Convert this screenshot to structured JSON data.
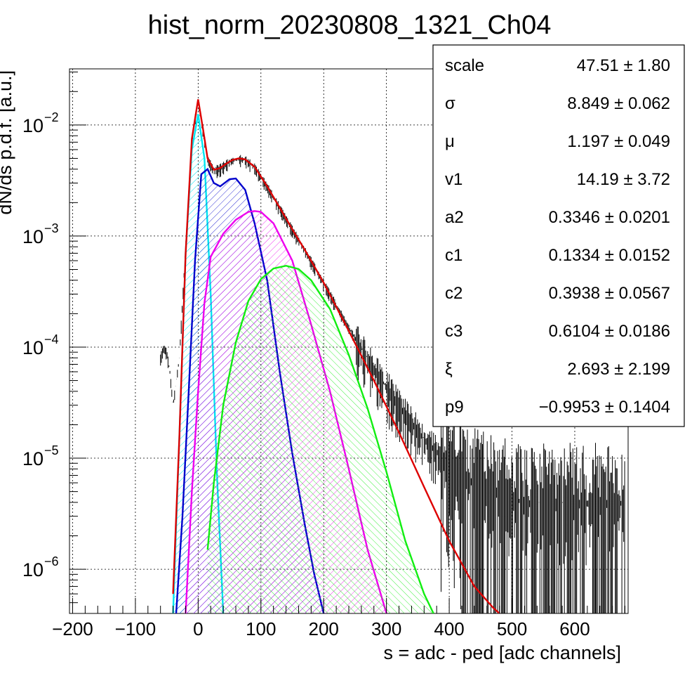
{
  "chart_data": {
    "type": "line",
    "title": "hist_norm_20230808_1321_Ch04",
    "xlabel": "s = adc - ped [adc channels]",
    "ylabel": "dN/ds p.d.f. [a.u.]",
    "xlim": [
      -205,
      685
    ],
    "ylim": [
      4e-07,
      0.032
    ],
    "yscale": "log",
    "grid": true,
    "x_ticks": [
      -200,
      -100,
      0,
      100,
      200,
      300,
      400,
      500,
      600
    ],
    "x_tick_labels": [
      "−200",
      "−100",
      "0",
      "100",
      "200",
      "300",
      "400",
      "500",
      "600"
    ],
    "y_ticks": [
      {
        "value": 1e-06,
        "mantissa": "10",
        "exponent": "−6"
      },
      {
        "value": 1e-05,
        "mantissa": "10",
        "exponent": "−5"
      },
      {
        "value": 0.0001,
        "mantissa": "10",
        "exponent": "−4"
      },
      {
        "value": 0.001,
        "mantissa": "10",
        "exponent": "−3"
      },
      {
        "value": 0.01,
        "mantissa": "10",
        "exponent": "−2"
      }
    ],
    "series": [
      {
        "color": "#00e5f0",
        "style": "filled-hatched",
        "x": [
          -40,
          -30,
          -20,
          -10,
          0,
          10,
          20,
          30,
          40
        ],
        "y": [
          4e-07,
          1.5e-05,
          0.0007,
          0.006,
          0.0125,
          0.005,
          0.0003,
          7e-06,
          4e-07
        ]
      },
      {
        "color": "#0000cc",
        "style": "filled-hatched",
        "x": [
          -35,
          -25,
          -15,
          -5,
          5,
          15,
          25,
          35,
          50,
          60,
          75,
          90,
          110,
          130,
          150,
          170,
          185,
          200
        ],
        "y": [
          4e-07,
          3e-06,
          4e-05,
          0.0006,
          0.0036,
          0.004,
          0.003,
          0.0028,
          0.00325,
          0.0033,
          0.0026,
          0.0013,
          0.0004,
          6e-05,
          1.1e-05,
          2.5e-06,
          9e-07,
          4e-07
        ]
      },
      {
        "color": "#ee00ee",
        "style": "filled-hatched",
        "x": [
          -20,
          -10,
          0,
          10,
          20,
          40,
          60,
          80,
          90,
          100,
          120,
          150,
          180,
          210,
          240,
          270,
          300
        ],
        "y": [
          4e-07,
          5e-06,
          4e-05,
          0.00025,
          0.00065,
          0.00105,
          0.0014,
          0.00165,
          0.00168,
          0.00165,
          0.0013,
          0.0006,
          0.00016,
          4e-05,
          8e-06,
          1.5e-06,
          4e-07
        ]
      },
      {
        "color": "#11ee11",
        "style": "filled-hatched",
        "x": [
          15,
          25,
          40,
          60,
          80,
          100,
          120,
          140,
          160,
          180,
          210,
          240,
          270,
          300,
          330,
          360,
          375
        ],
        "y": [
          1.5e-06,
          6e-06,
          3e-05,
          0.00011,
          0.00026,
          0.00041,
          0.00051,
          0.00054,
          0.000505,
          0.0004,
          0.00022,
          8.5e-05,
          2.8e-05,
          7.5e-06,
          1.8e-06,
          6e-07,
          4e-07
        ]
      },
      {
        "color": "#dd0000",
        "style": "line",
        "x": [
          -40,
          -30,
          -20,
          -10,
          0,
          8,
          15,
          25,
          35,
          45,
          55,
          65,
          75,
          90,
          110,
          130,
          150,
          170,
          200,
          240,
          280,
          320,
          360,
          400,
          440,
          470,
          480
        ],
        "y": [
          6e-07,
          1.5e-05,
          0.0007,
          0.0075,
          0.017,
          0.009,
          0.005,
          0.00395,
          0.0041,
          0.0045,
          0.00485,
          0.005,
          0.0049,
          0.0042,
          0.0028,
          0.0018,
          0.00115,
          0.00075,
          0.00038,
          0.00014,
          5e-05,
          1.7e-05,
          5.5e-06,
          1.8e-06,
          7e-07,
          4.5e-07,
          4e-07
        ]
      },
      {
        "color": "#000000",
        "style": "histogram",
        "x": [
          -60,
          -55,
          -50,
          -45,
          -40,
          -30,
          -20,
          -10,
          0,
          8,
          15,
          25,
          35,
          45,
          55,
          65,
          75,
          90,
          110,
          130,
          150,
          170,
          200,
          240,
          280,
          320,
          360,
          400,
          440,
          480,
          520,
          560,
          600,
          640,
          680
        ],
        "y": [
          8e-05,
          0.0001,
          9e-05,
          6e-05,
          3e-05,
          8e-05,
          0.0008,
          0.0075,
          0.017,
          0.009,
          0.005,
          0.00395,
          0.0041,
          0.0045,
          0.00485,
          0.005,
          0.0049,
          0.0042,
          0.0028,
          0.0018,
          0.00115,
          0.00075,
          0.00038,
          0.00015,
          6.5e-05,
          3e-05,
          1.5e-05,
          9e-06,
          6e-06,
          5e-06,
          4e-06,
          4e-06,
          4e-06,
          4e-06,
          4e-06
        ]
      }
    ]
  },
  "stats": {
    "rows": [
      {
        "name": "scale",
        "value": "47.51 ± 1.80"
      },
      {
        "name": "σ",
        "value": "8.849 ± 0.062"
      },
      {
        "name": "μ",
        "value": "1.197 ± 0.049"
      },
      {
        "name": "v1",
        "value": "14.19 ± 3.72"
      },
      {
        "name": "a2",
        "value": "0.3346 ± 0.0201"
      },
      {
        "name": "c1",
        "value": "0.1334 ± 0.0152"
      },
      {
        "name": "c2",
        "value": "0.3938 ± 0.0567"
      },
      {
        "name": "c3",
        "value": "0.6104 ± 0.0186"
      },
      {
        "name": "ξ",
        "value": "2.693 ± 2.199"
      },
      {
        "name": "p9",
        "value": "−0.9953 ± 0.1404"
      }
    ]
  }
}
